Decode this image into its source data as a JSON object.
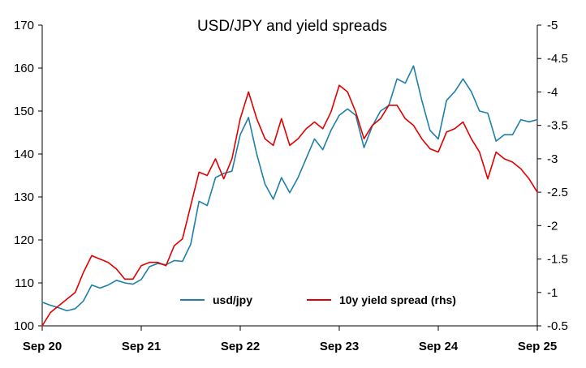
{
  "chart_data": {
    "type": "line",
    "title": "USD/JPY and yield spreads",
    "x_ticks": [
      "Sep 20",
      "Sep 21",
      "Sep 22",
      "Sep 23",
      "Sep 24",
      "Sep 25"
    ],
    "y_left": {
      "min": 100,
      "max": 170,
      "ticks": [
        "100",
        "110",
        "120",
        "130",
        "140",
        "150",
        "160",
        "170"
      ]
    },
    "y_right": {
      "min": -0.5,
      "max": -5,
      "reversed": true,
      "ticks": [
        "-0.5",
        "-1",
        "-1.5",
        "-2",
        "-2.5",
        "-3",
        "-3.5",
        "-4",
        "-4.5",
        "-5"
      ]
    },
    "grid": false,
    "legend_position": "bottom-center",
    "series": [
      {
        "name": "usd/jpy",
        "axis": "left",
        "color": "#1f7fa8",
        "points": [
          [
            "Sep 20",
            105.5
          ],
          [
            "Oct 20",
            104.8
          ],
          [
            "Nov 20",
            104.2
          ],
          [
            "Dec 20",
            103.5
          ],
          [
            "Jan 21",
            104.0
          ],
          [
            "Feb 21",
            105.8
          ],
          [
            "Mar 21",
            109.5
          ],
          [
            "Apr 21",
            108.8
          ],
          [
            "May 21",
            109.5
          ],
          [
            "Jun 21",
            110.6
          ],
          [
            "Jul 21",
            110.0
          ],
          [
            "Aug 21",
            109.7
          ],
          [
            "Sep 21",
            110.8
          ],
          [
            "Oct 21",
            113.8
          ],
          [
            "Nov 21",
            114.5
          ],
          [
            "Dec 21",
            114.2
          ],
          [
            "Jan 22",
            115.2
          ],
          [
            "Feb 22",
            115.0
          ],
          [
            "Mar 22",
            119.0
          ],
          [
            "Apr 22",
            129.0
          ],
          [
            "May 22",
            128.0
          ],
          [
            "Jun 22",
            134.5
          ],
          [
            "Jul 22",
            135.5
          ],
          [
            "Aug 22",
            136.0
          ],
          [
            "Sep 22",
            144.5
          ],
          [
            "Oct 22",
            148.5
          ],
          [
            "Nov 22",
            140.0
          ],
          [
            "Dec 22",
            133.0
          ],
          [
            "Jan 23",
            129.5
          ],
          [
            "Feb 23",
            134.5
          ],
          [
            "Mar 23",
            131.0
          ],
          [
            "Apr 23",
            134.5
          ],
          [
            "May 23",
            139.0
          ],
          [
            "Jun 23",
            143.5
          ],
          [
            "Jul 23",
            141.0
          ],
          [
            "Aug 23",
            145.5
          ],
          [
            "Sep 23",
            149.0
          ],
          [
            "Oct 23",
            150.5
          ],
          [
            "Nov 23",
            149.0
          ],
          [
            "Dec 23",
            141.5
          ],
          [
            "Jan 24",
            146.5
          ],
          [
            "Feb 24",
            150.0
          ],
          [
            "Mar 24",
            151.3
          ],
          [
            "Apr 24",
            157.5
          ],
          [
            "May 24",
            156.5
          ],
          [
            "Jun 24",
            160.5
          ],
          [
            "Jul 24",
            152.5
          ],
          [
            "Aug 24",
            145.5
          ],
          [
            "Sep 24",
            143.5
          ],
          [
            "Oct 24",
            152.5
          ],
          [
            "Nov 24",
            154.5
          ],
          [
            "Dec 24",
            157.5
          ],
          [
            "Jan 25",
            154.5
          ],
          [
            "Feb 25",
            150.0
          ],
          [
            "Mar 25",
            149.5
          ],
          [
            "Apr 25",
            143.0
          ],
          [
            "May 25",
            144.5
          ],
          [
            "Jun 25",
            144.5
          ],
          [
            "Jul 25",
            148.0
          ],
          [
            "Aug 25",
            147.5
          ],
          [
            "Sep 25",
            148.0
          ]
        ]
      },
      {
        "name": "10y yield spread (rhs)",
        "axis": "right",
        "color": "#e00000",
        "points": [
          [
            "Sep 20",
            -0.5
          ],
          [
            "Oct 20",
            -0.7
          ],
          [
            "Nov 20",
            -0.8
          ],
          [
            "Dec 20",
            -0.9
          ],
          [
            "Jan 21",
            -1.0
          ],
          [
            "Feb 21",
            -1.3
          ],
          [
            "Mar 21",
            -1.55
          ],
          [
            "Apr 21",
            -1.5
          ],
          [
            "May 21",
            -1.45
          ],
          [
            "Jun 21",
            -1.35
          ],
          [
            "Jul 21",
            -1.2
          ],
          [
            "Aug 21",
            -1.2
          ],
          [
            "Sep 21",
            -1.4
          ],
          [
            "Oct 21",
            -1.45
          ],
          [
            "Nov 21",
            -1.45
          ],
          [
            "Dec 21",
            -1.4
          ],
          [
            "Jan 22",
            -1.7
          ],
          [
            "Feb 22",
            -1.8
          ],
          [
            "Mar 22",
            -2.3
          ],
          [
            "Apr 22",
            -2.8
          ],
          [
            "May 22",
            -2.75
          ],
          [
            "Jun 22",
            -3.0
          ],
          [
            "Jul 22",
            -2.7
          ],
          [
            "Aug 22",
            -3.0
          ],
          [
            "Sep 22",
            -3.6
          ],
          [
            "Oct 22",
            -4.0
          ],
          [
            "Nov 22",
            -3.6
          ],
          [
            "Dec 22",
            -3.3
          ],
          [
            "Jan 23",
            -3.2
          ],
          [
            "Feb 23",
            -3.6
          ],
          [
            "Mar 23",
            -3.2
          ],
          [
            "Apr 23",
            -3.3
          ],
          [
            "May 23",
            -3.45
          ],
          [
            "Jun 23",
            -3.55
          ],
          [
            "Jul 23",
            -3.45
          ],
          [
            "Aug 23",
            -3.7
          ],
          [
            "Sep 23",
            -4.1
          ],
          [
            "Oct 23",
            -4.0
          ],
          [
            "Nov 23",
            -3.7
          ],
          [
            "Dec 23",
            -3.3
          ],
          [
            "Jan 24",
            -3.5
          ],
          [
            "Feb 24",
            -3.6
          ],
          [
            "Mar 24",
            -3.8
          ],
          [
            "Apr 24",
            -3.8
          ],
          [
            "May 24",
            -3.6
          ],
          [
            "Jun 24",
            -3.5
          ],
          [
            "Jul 24",
            -3.3
          ],
          [
            "Aug 24",
            -3.15
          ],
          [
            "Sep 24",
            -3.1
          ],
          [
            "Oct 24",
            -3.4
          ],
          [
            "Nov 24",
            -3.45
          ],
          [
            "Dec 24",
            -3.55
          ],
          [
            "Jan 25",
            -3.3
          ],
          [
            "Feb 25",
            -3.1
          ],
          [
            "Mar 25",
            -2.7
          ],
          [
            "Apr 25",
            -3.1
          ],
          [
            "May 25",
            -3.0
          ],
          [
            "Jun 25",
            -2.95
          ],
          [
            "Jul 25",
            -2.85
          ],
          [
            "Aug 25",
            -2.7
          ],
          [
            "Sep 25",
            -2.5
          ]
        ]
      }
    ]
  }
}
